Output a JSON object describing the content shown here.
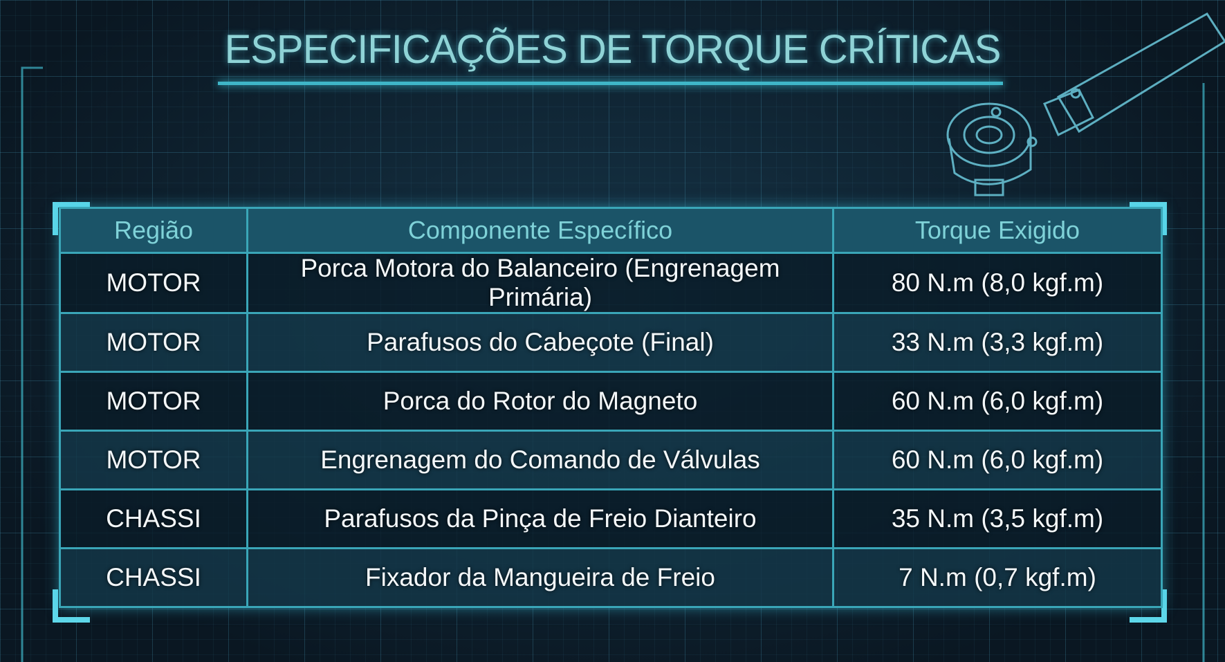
{
  "header": {
    "title": "ESPECIFICAÇÕES DE TORQUE CRÍTICAS"
  },
  "table": {
    "columns": [
      "Região",
      "Componente Específico",
      "Torque Exigido"
    ],
    "rows": [
      [
        "MOTOR",
        "Porca Motora do Balanceiro (Engrenagem Primária)",
        "80 N.m (8,0 kgf.m)"
      ],
      [
        "MOTOR",
        "Parafusos do Cabeçote (Final)",
        "33 N.m (3,3 kgf.m)"
      ],
      [
        "MOTOR",
        "Porca do Rotor do Magneto",
        "60 N.m (6,0 kgf.m)"
      ],
      [
        "MOTOR",
        "Engrenagem do Comando de Válvulas",
        "60 N.m (6,0 kgf.m)"
      ],
      [
        "CHASSI",
        "Parafusos da Pinça de Freio Dianteiro",
        "35 N.m (3,5 kgf.m)"
      ],
      [
        "CHASSI",
        "Fixador da Mangueira de Freio",
        "7 N.m (0,7 kgf.m)"
      ]
    ]
  }
}
